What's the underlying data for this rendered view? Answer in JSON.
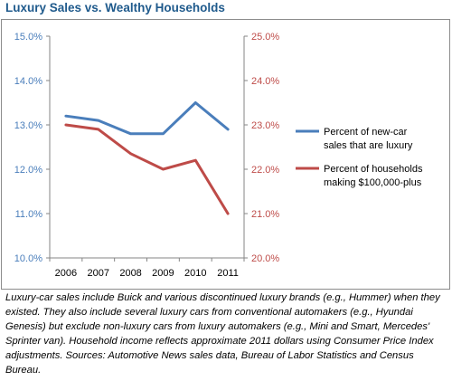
{
  "title": "Luxury Sales vs. Wealthy Households",
  "caption": "Luxury-car sales include Buick and various discontinued luxury brands (e.g., Hummer) when they existed. They also include several luxury cars from conventional automakers (e.g., Hyundai Genesis) but exclude non-luxury cars from luxury automakers (e.g., Mini and Smart, Mercedes' Sprinter van). Household income reflects approximate 2011 dollars using Consumer Price Index adjustments. Sources: Automotive News sales data, Bureau of Labor Statistics and Census Bureau.",
  "colors": {
    "title": "#1f5a8c",
    "series_blue": "#4a7ebb",
    "series_red": "#be4b48",
    "left_axis_text": "#4a7ebb",
    "right_axis_text": "#be4b48",
    "axis_line": "#868686"
  },
  "chart_data": {
    "type": "line",
    "categories": [
      "2006",
      "2007",
      "2008",
      "2009",
      "2010",
      "2011"
    ],
    "series": [
      {
        "name": "Percent of new-car sales that are luxury",
        "axis": "left",
        "color": "#4a7ebb",
        "values": [
          13.2,
          13.1,
          12.8,
          12.8,
          13.5,
          12.9
        ]
      },
      {
        "name": "Percent of households making $100,000-plus",
        "axis": "right",
        "color": "#be4b48",
        "values": [
          23.0,
          22.9,
          22.35,
          22.0,
          22.2,
          21.0
        ]
      }
    ],
    "y_left": {
      "min": 10.0,
      "max": 15.0,
      "step": 1.0,
      "tick_labels": [
        "10.0%",
        "11.0%",
        "12.0%",
        "13.0%",
        "14.0%",
        "15.0%"
      ]
    },
    "y_right": {
      "min": 20.0,
      "max": 25.0,
      "step": 1.0,
      "tick_labels": [
        "20.0%",
        "21.0%",
        "22.0%",
        "23.0%",
        "24.0%",
        "25.0%"
      ]
    },
    "grid": false,
    "legend_position": "right"
  }
}
